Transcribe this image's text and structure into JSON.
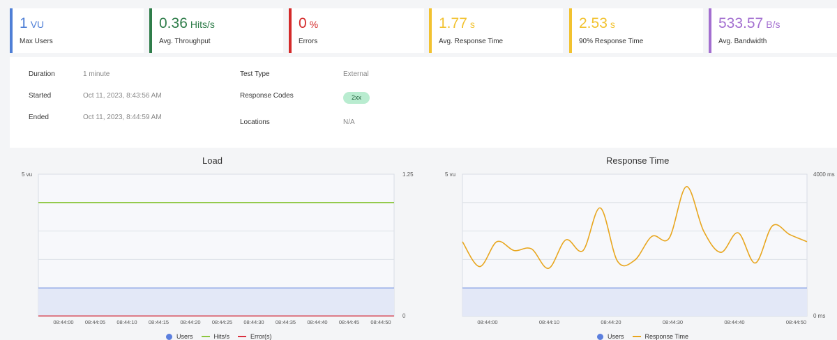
{
  "stats": [
    {
      "value": "1",
      "unit": "VU",
      "label": "Max Users",
      "color": "#4f7fd6"
    },
    {
      "value": "0.36",
      "unit": "Hits/s",
      "label": "Avg. Throughput",
      "color": "#2f7d4a"
    },
    {
      "value": "0",
      "unit": "%",
      "label": "Errors",
      "color": "#d42a2a"
    },
    {
      "value": "1.77",
      "unit": "s",
      "label": "Avg. Response Time",
      "color": "#f2c230"
    },
    {
      "value": "2.53",
      "unit": "s",
      "label": "90% Response Time",
      "color": "#f2c230"
    },
    {
      "value": "533.57",
      "unit": "B/s",
      "label": "Avg. Bandwidth",
      "color": "#a36fd0"
    }
  ],
  "details": {
    "duration_label": "Duration",
    "duration": "1 minute",
    "started_label": "Started",
    "started": "Oct 11, 2023, 8:43:56 AM",
    "ended_label": "Ended",
    "ended": "Oct 11, 2023, 8:44:59 AM",
    "test_type_label": "Test Type",
    "test_type": "External",
    "response_codes_label": "Response Codes",
    "response_code": "2xx",
    "locations_label": "Locations",
    "locations": "N/A"
  },
  "colors": {
    "users": "#5b7fde",
    "users_fill": "#e3e8f7",
    "hits": "#8cc63f",
    "errors": "#d9303f",
    "response": "#e8a61e"
  },
  "chart_data": [
    {
      "type": "line",
      "title": "Load",
      "y_left_label_top": "5 vu",
      "y_right_label_top": "1.25",
      "y_right_label_bottom": "0",
      "ylim_left": [
        0,
        5
      ],
      "ylim_right": [
        0,
        1.25
      ],
      "x_ticks": [
        "08:44:00",
        "08:44:05",
        "08:44:10",
        "08:44:15",
        "08:44:20",
        "08:44:25",
        "08:44:30",
        "08:44:35",
        "08:44:40",
        "08:44:45",
        "08:44:50"
      ],
      "series": [
        {
          "name": "Users",
          "axis": "left",
          "values": [
            1,
            1
          ],
          "style": "area"
        },
        {
          "name": "Hits/s",
          "axis": "right",
          "values": [
            1.0,
            1.0
          ],
          "style": "line"
        },
        {
          "name": "Error(s)",
          "axis": "right",
          "values": [
            0,
            0
          ],
          "style": "line"
        }
      ]
    },
    {
      "type": "line",
      "title": "Response Time",
      "y_left_label_top": "5 vu",
      "y_right_label_top": "4000 ms",
      "y_right_label_bottom": "0 ms",
      "ylim_left": [
        0,
        5
      ],
      "ylim_right": [
        0,
        4000
      ],
      "x_ticks": [
        "08:44:00",
        "08:44:10",
        "08:44:20",
        "08:44:30",
        "08:44:40",
        "08:44:50"
      ],
      "series": [
        {
          "name": "Users",
          "axis": "left",
          "values": [
            1,
            1
          ],
          "style": "area"
        },
        {
          "name": "Response Time",
          "axis": "right",
          "x": [
            0,
            1,
            2,
            3,
            4,
            5,
            6,
            7,
            8,
            9,
            10,
            11,
            12,
            13,
            14,
            15,
            16,
            17,
            18,
            19,
            20
          ],
          "values": [
            2100,
            1400,
            2100,
            1850,
            1900,
            1350,
            2150,
            1850,
            3050,
            1550,
            1580,
            2250,
            2200,
            3650,
            2400,
            1800,
            2350,
            1500,
            2550,
            2300,
            2100
          ],
          "style": "line"
        }
      ]
    }
  ]
}
